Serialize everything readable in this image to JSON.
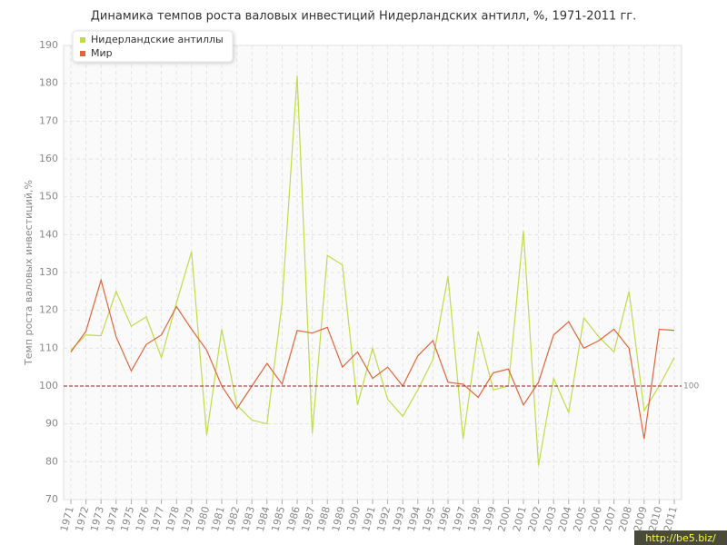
{
  "chart_data": {
    "type": "line",
    "title": "Динамика темпов роста валовых инвестиций Нидерландских антилл, %, 1971-2011 гг.",
    "y_label": "Темп роста валовых инвестиций,%",
    "categories": [
      "1971",
      "1972",
      "1973",
      "1974",
      "1975",
      "1976",
      "1977",
      "1978",
      "1979",
      "1980",
      "1981",
      "1982",
      "1983",
      "1984",
      "1985",
      "1986",
      "1987",
      "1988",
      "1989",
      "1990",
      "1991",
      "1992",
      "1993",
      "1994",
      "1995",
      "1996",
      "1997",
      "1998",
      "1999",
      "2000",
      "2001",
      "2002",
      "2003",
      "2004",
      "2005",
      "2006",
      "2007",
      "2008",
      "2009",
      "2010",
      "2011"
    ],
    "series": [
      {
        "name": "Нидерландские антиллы",
        "color": "#bfdc4a",
        "values": [
          109.5,
          113.5,
          113.3,
          125,
          115.8,
          118.3,
          107.5,
          122,
          135.5,
          87,
          115,
          95,
          91,
          90,
          122,
          182,
          87.5,
          134.5,
          132,
          95,
          110,
          96.5,
          92,
          99,
          107,
          129,
          86,
          114.5,
          99,
          100,
          141,
          79,
          102,
          93,
          118,
          113,
          109,
          125,
          93.5,
          100,
          107.5
        ]
      },
      {
        "name": "Мир",
        "color": "#e0653a",
        "values": [
          109,
          114.5,
          128,
          113,
          104,
          111,
          113.5,
          121,
          115,
          109.5,
          100,
          94,
          100,
          106,
          100.5,
          114.7,
          114,
          115.5,
          105,
          109,
          102,
          105,
          100,
          108,
          112,
          101,
          100.5,
          97,
          103.5,
          104.5,
          95,
          101,
          113.5,
          117,
          110,
          112,
          115,
          110,
          86,
          115,
          114.7
        ]
      }
    ],
    "ylim": [
      70,
      190
    ],
    "yticks": [
      70,
      80,
      90,
      100,
      110,
      120,
      130,
      140,
      150,
      160,
      170,
      180,
      190
    ],
    "reference_line": 100,
    "reference_color": "#8b2a2a",
    "grid": true,
    "legend": "top-left",
    "watermark": "http://be5.biz/"
  }
}
